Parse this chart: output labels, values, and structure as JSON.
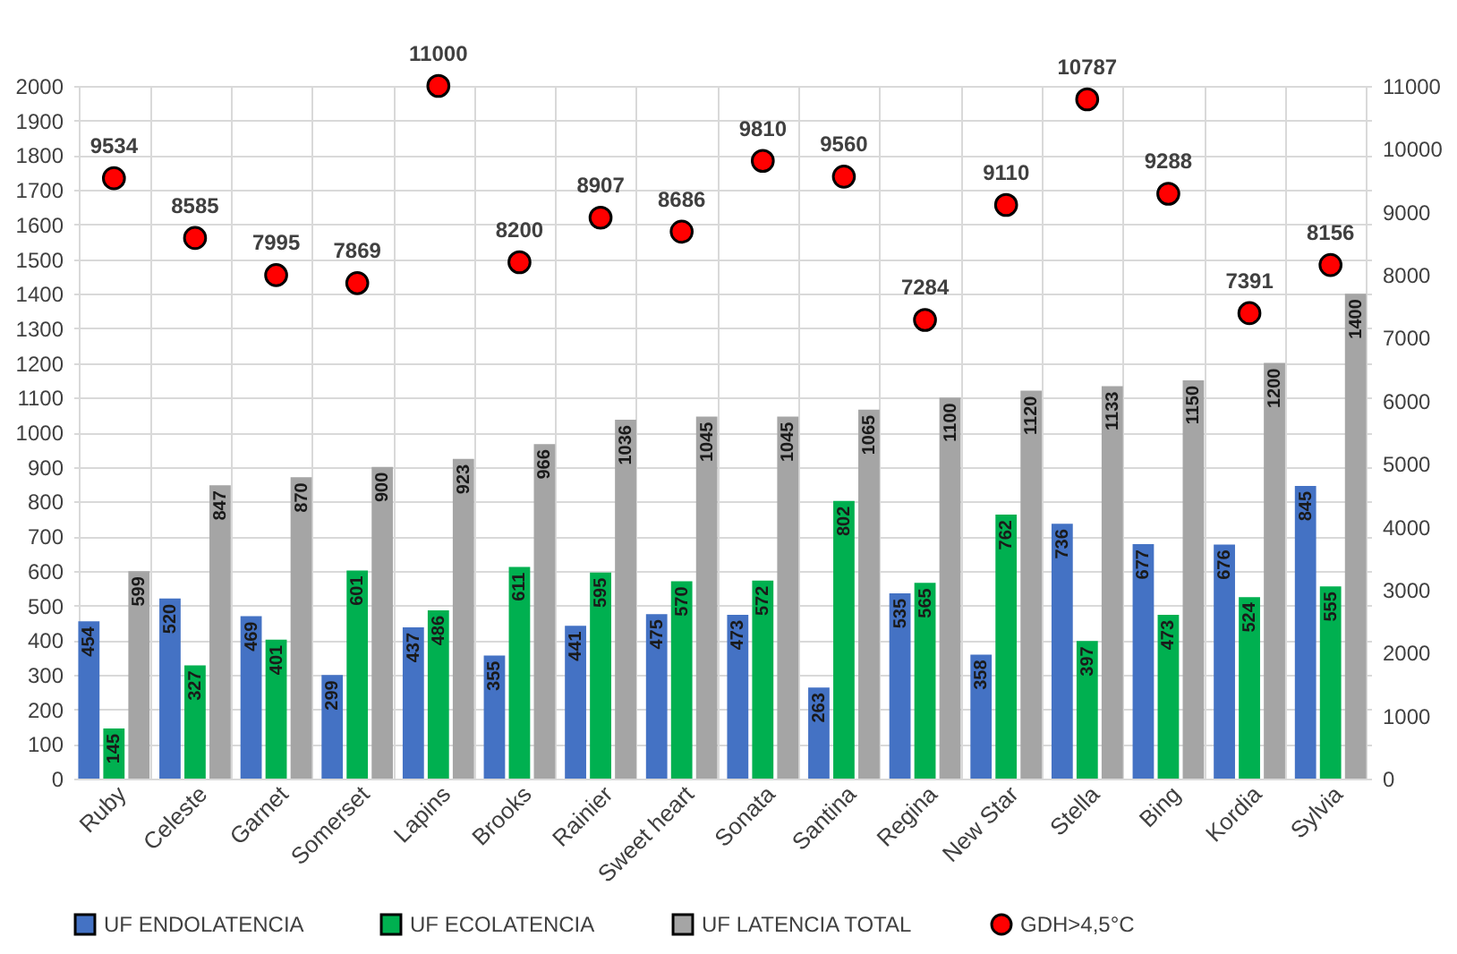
{
  "chart_data": {
    "type": "bar",
    "categories": [
      "Ruby",
      "Celeste",
      "Garnet",
      "Somerset",
      "Lapins",
      "Brooks",
      "Rainier",
      "Sweet heart",
      "Sonata",
      "Santina",
      "Regina",
      "New Star",
      "Stella",
      "Bing",
      "Kordia",
      "Sylvia"
    ],
    "series": [
      {
        "name": "UF ENDOLATENCIA",
        "color": "#4472c4",
        "values": [
          454,
          520,
          469,
          299,
          437,
          355,
          441,
          475,
          473,
          263,
          535,
          358,
          736,
          677,
          676,
          845
        ]
      },
      {
        "name": "UF ECOLATENCIA",
        "color": "#00b050",
        "values": [
          145,
          327,
          401,
          601,
          486,
          611,
          595,
          570,
          572,
          802,
          565,
          762,
          397,
          473,
          524,
          555
        ]
      },
      {
        "name": "UF LATENCIA TOTAL",
        "color": "#a5a5a5",
        "values": [
          599,
          847,
          870,
          900,
          923,
          966,
          1036,
          1045,
          1045,
          1065,
          1100,
          1120,
          1133,
          1150,
          1200,
          1400
        ]
      },
      {
        "name": "GDH>4,5°C",
        "color": "#ff0000",
        "type": "scatter",
        "axis": "y2",
        "values": [
          9534,
          8585,
          7995,
          7869,
          11000,
          8200,
          8907,
          8686,
          9810,
          9560,
          7284,
          9110,
          10787,
          9288,
          7391,
          8156
        ]
      }
    ],
    "ylim": [
      0,
      2000
    ],
    "yticks": [
      0,
      100,
      200,
      300,
      400,
      500,
      600,
      700,
      800,
      900,
      1000,
      1100,
      1200,
      1300,
      1400,
      1500,
      1600,
      1700,
      1800,
      1900,
      2000
    ],
    "y2lim": [
      0,
      11000
    ],
    "y2ticks": [
      0,
      1000,
      2000,
      3000,
      4000,
      5000,
      6000,
      7000,
      8000,
      9000,
      10000,
      11000
    ],
    "data_labels": true,
    "grid": true,
    "legend": "bottom",
    "marker": "circle"
  }
}
